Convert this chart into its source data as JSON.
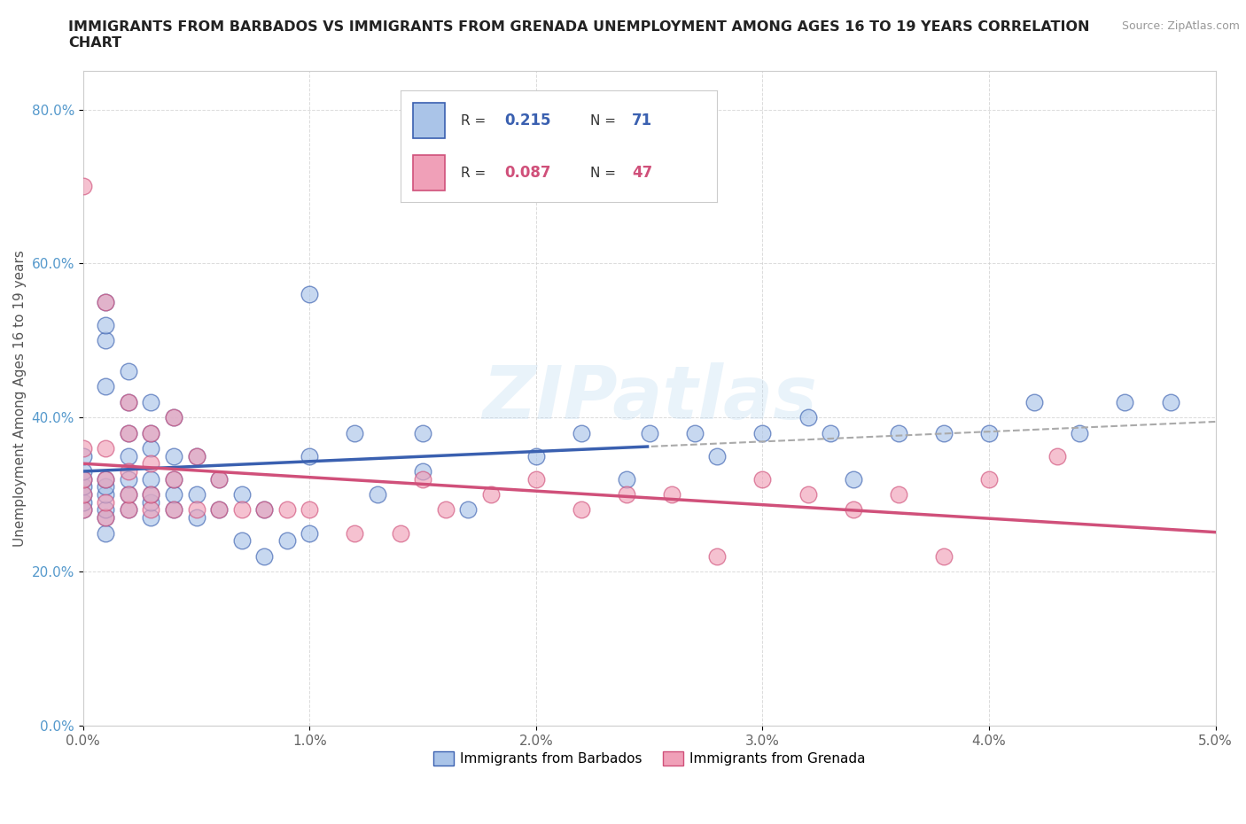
{
  "title": "IMMIGRANTS FROM BARBADOS VS IMMIGRANTS FROM GRENADA UNEMPLOYMENT AMONG AGES 16 TO 19 YEARS CORRELATION\nCHART",
  "source": "Source: ZipAtlas.com",
  "ylabel": "Unemployment Among Ages 16 to 19 years",
  "xlim": [
    0.0,
    0.05
  ],
  "ylim": [
    0.0,
    0.85
  ],
  "xticks": [
    0.0,
    0.01,
    0.02,
    0.03,
    0.04,
    0.05
  ],
  "xticklabels": [
    "0.0%",
    "1.0%",
    "2.0%",
    "3.0%",
    "4.0%",
    "5.0%"
  ],
  "yticks": [
    0.0,
    0.2,
    0.4,
    0.6,
    0.8
  ],
  "yticklabels": [
    "0.0%",
    "20.0%",
    "40.0%",
    "60.0%",
    "80.0%"
  ],
  "barbados_color": "#aac4e8",
  "grenada_color": "#f0a0b8",
  "trendline_barbados_color": "#3a60b0",
  "trendline_grenada_color": "#d0507a",
  "R_barbados": 0.215,
  "N_barbados": 71,
  "R_grenada": 0.087,
  "N_grenada": 47,
  "watermark": "ZIPatlas",
  "background_color": "#ffffff",
  "grid_color": "#cccccc",
  "barbados_x": [
    0.0,
    0.0,
    0.0,
    0.0,
    0.0,
    0.0,
    0.0,
    0.001,
    0.001,
    0.001,
    0.001,
    0.001,
    0.001,
    0.001,
    0.001,
    0.001,
    0.001,
    0.002,
    0.002,
    0.002,
    0.002,
    0.002,
    0.002,
    0.002,
    0.003,
    0.003,
    0.003,
    0.003,
    0.003,
    0.003,
    0.003,
    0.004,
    0.004,
    0.004,
    0.004,
    0.004,
    0.005,
    0.005,
    0.005,
    0.006,
    0.006,
    0.007,
    0.007,
    0.008,
    0.008,
    0.009,
    0.01,
    0.01,
    0.01,
    0.012,
    0.013,
    0.015,
    0.015,
    0.017,
    0.02,
    0.022,
    0.024,
    0.025,
    0.027,
    0.028,
    0.03,
    0.032,
    0.033,
    0.034,
    0.036,
    0.038,
    0.04,
    0.042,
    0.044,
    0.046,
    0.048
  ],
  "barbados_y": [
    0.28,
    0.29,
    0.3,
    0.31,
    0.32,
    0.33,
    0.35,
    0.25,
    0.27,
    0.28,
    0.3,
    0.31,
    0.32,
    0.44,
    0.5,
    0.52,
    0.55,
    0.28,
    0.3,
    0.32,
    0.35,
    0.38,
    0.42,
    0.46,
    0.27,
    0.29,
    0.3,
    0.32,
    0.36,
    0.38,
    0.42,
    0.28,
    0.3,
    0.32,
    0.35,
    0.4,
    0.27,
    0.3,
    0.35,
    0.28,
    0.32,
    0.24,
    0.3,
    0.22,
    0.28,
    0.24,
    0.25,
    0.35,
    0.56,
    0.38,
    0.3,
    0.33,
    0.38,
    0.28,
    0.35,
    0.38,
    0.32,
    0.38,
    0.38,
    0.35,
    0.38,
    0.4,
    0.38,
    0.32,
    0.38,
    0.38,
    0.38,
    0.42,
    0.38,
    0.42,
    0.42
  ],
  "grenada_x": [
    0.0,
    0.0,
    0.0,
    0.0,
    0.0,
    0.001,
    0.001,
    0.001,
    0.001,
    0.001,
    0.002,
    0.002,
    0.002,
    0.002,
    0.002,
    0.003,
    0.003,
    0.003,
    0.003,
    0.004,
    0.004,
    0.004,
    0.005,
    0.005,
    0.006,
    0.006,
    0.007,
    0.008,
    0.009,
    0.01,
    0.012,
    0.014,
    0.015,
    0.016,
    0.018,
    0.02,
    0.022,
    0.024,
    0.026,
    0.028,
    0.03,
    0.032,
    0.034,
    0.036,
    0.038,
    0.04,
    0.043
  ],
  "grenada_y": [
    0.28,
    0.3,
    0.32,
    0.36,
    0.7,
    0.27,
    0.29,
    0.32,
    0.36,
    0.55,
    0.28,
    0.3,
    0.33,
    0.38,
    0.42,
    0.28,
    0.3,
    0.34,
    0.38,
    0.28,
    0.32,
    0.4,
    0.28,
    0.35,
    0.28,
    0.32,
    0.28,
    0.28,
    0.28,
    0.28,
    0.25,
    0.25,
    0.32,
    0.28,
    0.3,
    0.32,
    0.28,
    0.3,
    0.3,
    0.22,
    0.32,
    0.3,
    0.28,
    0.3,
    0.22,
    0.32,
    0.35
  ]
}
